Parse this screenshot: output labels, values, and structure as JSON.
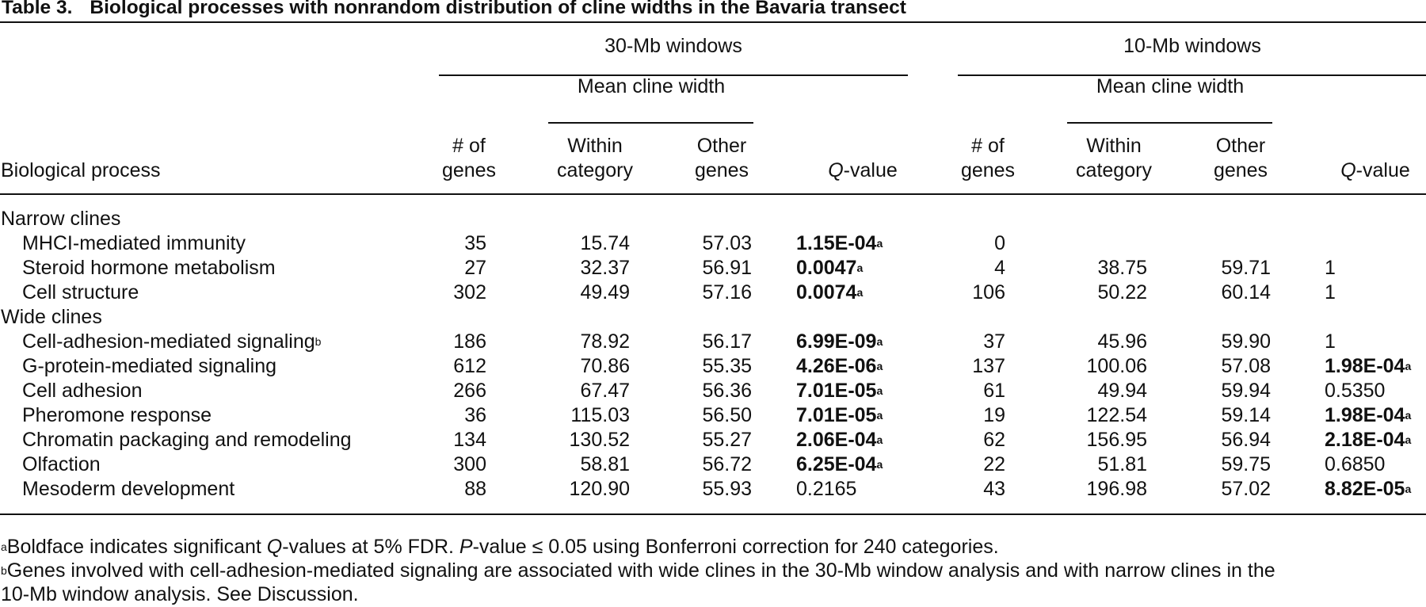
{
  "caption": {
    "label": "Table 3.",
    "title": "Biological processes with nonrandom distribution of cline widths in the Bavaria transect"
  },
  "headers": {
    "group30": "30-Mb windows",
    "group10": "10-Mb windows",
    "mean_cline_width": "Mean cline width",
    "process": "Biological process",
    "num_of": "# of",
    "genes": "genes",
    "within": "Within",
    "category": "category",
    "other": "Other",
    "other_genes": "genes",
    "q_italic": "Q",
    "q_rest": "-value"
  },
  "sections": [
    {
      "label": "Narrow clines",
      "rows": [
        {
          "process": "MHCI-mediated immunity",
          "sup": "",
          "n30": "35",
          "w30": "15.74",
          "o30": "57.03",
          "q30": "1.15E-04",
          "q30bold": true,
          "n10": "0",
          "w10": "",
          "o10": "",
          "q10": "",
          "q10bold": false
        },
        {
          "process": "Steroid hormone metabolism",
          "sup": "",
          "n30": "27",
          "w30": "32.37",
          "o30": "56.91",
          "q30": "0.0047",
          "q30bold": true,
          "n10": "4",
          "w10": "38.75",
          "o10": "59.71",
          "q10": "1",
          "q10bold": false
        },
        {
          "process": "Cell structure",
          "sup": "",
          "n30": "302",
          "w30": "49.49",
          "o30": "57.16",
          "q30": "0.0074",
          "q30bold": true,
          "n10": "106",
          "w10": "50.22",
          "o10": "60.14",
          "q10": "1",
          "q10bold": false
        }
      ]
    },
    {
      "label": "Wide clines",
      "rows": [
        {
          "process": "Cell-adhesion-mediated signaling",
          "sup": "b",
          "n30": "186",
          "w30": "78.92",
          "o30": "56.17",
          "q30": "6.99E-09",
          "q30bold": true,
          "n10": "37",
          "w10": "45.96",
          "o10": "59.90",
          "q10": "1",
          "q10bold": false
        },
        {
          "process": "G-protein-mediated signaling",
          "sup": "",
          "n30": "612",
          "w30": "70.86",
          "o30": "55.35",
          "q30": "4.26E-06",
          "q30bold": true,
          "n10": "137",
          "w10": "100.06",
          "o10": "57.08",
          "q10": "1.98E-04",
          "q10bold": true
        },
        {
          "process": "Cell adhesion",
          "sup": "",
          "n30": "266",
          "w30": "67.47",
          "o30": "56.36",
          "q30": "7.01E-05",
          "q30bold": true,
          "n10": "61",
          "w10": "49.94",
          "o10": "59.94",
          "q10": "0.5350",
          "q10bold": false
        },
        {
          "process": "Pheromone response",
          "sup": "",
          "n30": "36",
          "w30": "115.03",
          "o30": "56.50",
          "q30": "7.01E-05",
          "q30bold": true,
          "n10": "19",
          "w10": "122.54",
          "o10": "59.14",
          "q10": "1.98E-04",
          "q10bold": true
        },
        {
          "process": "Chromatin packaging and remodeling",
          "sup": "",
          "n30": "134",
          "w30": "130.52",
          "o30": "55.27",
          "q30": "2.06E-04",
          "q30bold": true,
          "n10": "62",
          "w10": "156.95",
          "o10": "56.94",
          "q10": "2.18E-04",
          "q10bold": true
        },
        {
          "process": "Olfaction",
          "sup": "",
          "n30": "300",
          "w30": "58.81",
          "o30": "56.72",
          "q30": "6.25E-04",
          "q30bold": true,
          "n10": "22",
          "w10": "51.81",
          "o10": "59.75",
          "q10": "0.6850",
          "q10bold": false
        },
        {
          "process": "Mesoderm development",
          "sup": "",
          "n30": "88",
          "w30": "120.90",
          "o30": "55.93",
          "q30": "0.2165",
          "q30bold": false,
          "n10": "43",
          "w10": "196.98",
          "o10": "57.02",
          "q10": "8.82E-05",
          "q10bold": true
        }
      ]
    }
  ],
  "sig_marker": "a",
  "footnotes": {
    "a_mark": "a",
    "a_text1": "Boldface indicates significant ",
    "a_q": "Q",
    "a_text2": "-values at 5% FDR. ",
    "a_p": "P",
    "a_text3": "-value ≤ 0.05 using Bonferroni correction for 240 categories.",
    "b_mark": "b",
    "b_line1": "Genes involved with cell-adhesion-mediated signaling are associated with wide clines in the 30-Mb window analysis and with narrow clines in the",
    "b_line2": "10-Mb window analysis. See Discussion."
  }
}
